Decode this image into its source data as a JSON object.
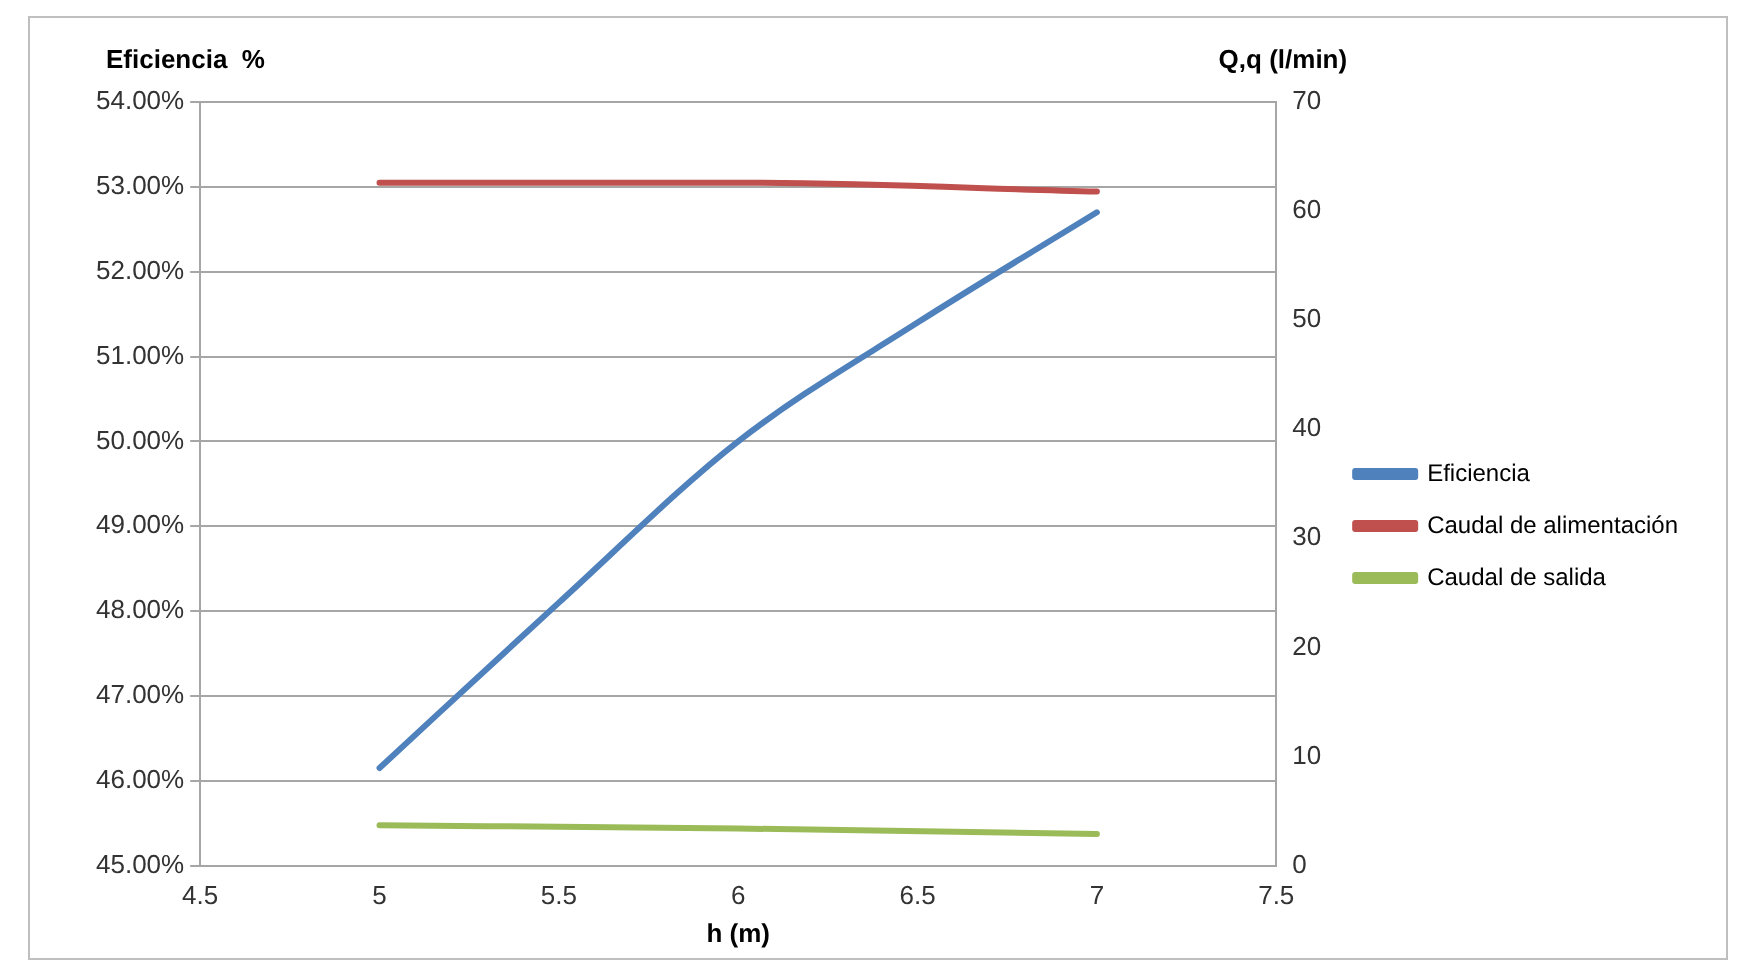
{
  "chart_data": {
    "type": "line",
    "xlabel": "h (m)",
    "ylabel": "Eficiencia  %",
    "y2label": "Q,q (l/min)",
    "x": [
      5,
      5.5,
      6,
      6.5,
      7
    ],
    "series": [
      {
        "name": "Eficiencia",
        "color": "#4f81bd",
        "values": [
          46.15,
          48.1,
          50.0,
          51.4,
          52.7
        ]
      },
      {
        "name": "Caudal de alimentación",
        "color": "#c0504d",
        "x": [
          5,
          6,
          7
        ],
        "axis": "y2",
        "values": [
          62.6,
          62.6,
          61.8
        ]
      },
      {
        "name": "Caudal de salida",
        "color": "#9bbb59",
        "x": [
          5,
          6,
          7
        ],
        "axis": "y2",
        "values": [
          3.7,
          3.4,
          2.9
        ]
      }
    ],
    "xlim": [
      4.5,
      7.5
    ],
    "xticks": [
      4.5,
      5,
      5.5,
      6,
      6.5,
      7,
      7.5
    ],
    "ylim": [
      45,
      54
    ],
    "yticks": [
      {
        "value": 45,
        "label": "45.00%"
      },
      {
        "value": 46,
        "label": "46.00%"
      },
      {
        "value": 47,
        "label": "47.00%"
      },
      {
        "value": 48,
        "label": "48.00%"
      },
      {
        "value": 49,
        "label": "49.00%"
      },
      {
        "value": 50,
        "label": "50.00%"
      },
      {
        "value": 51,
        "label": "51.00%"
      },
      {
        "value": 52,
        "label": "52.00%"
      },
      {
        "value": 53,
        "label": "53.00%"
      },
      {
        "value": 54,
        "label": "54.00%"
      }
    ],
    "y2lim": [
      0,
      70
    ],
    "y2ticks": [
      0,
      10,
      20,
      30,
      40,
      50,
      60,
      70
    ],
    "grid": "y",
    "legend": "right",
    "marker": "none",
    "line_style": "solid"
  }
}
